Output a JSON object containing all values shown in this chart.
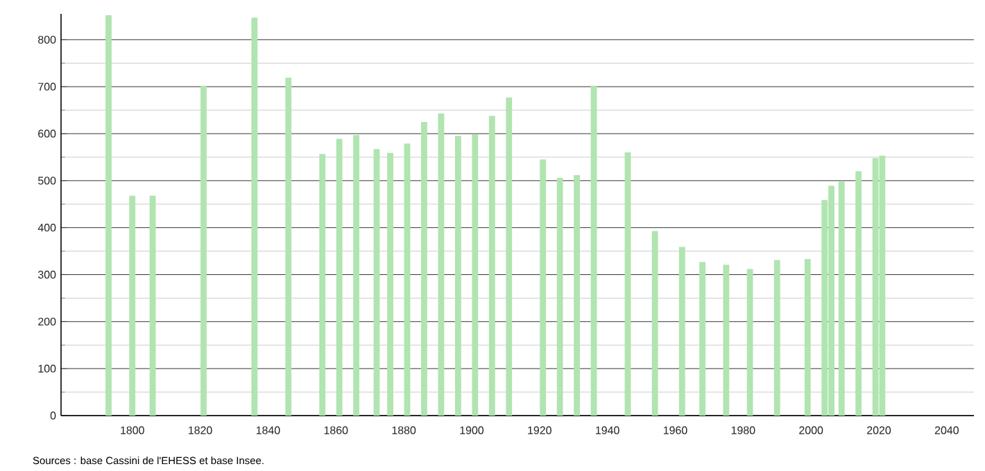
{
  "chart_data": {
    "type": "bar",
    "x": [
      1793,
      1800,
      1806,
      1821,
      1836,
      1846,
      1856,
      1861,
      1866,
      1872,
      1876,
      1881,
      1886,
      1891,
      1896,
      1901,
      1906,
      1911,
      1921,
      1926,
      1931,
      1936,
      1946,
      1954,
      1962,
      1968,
      1975,
      1982,
      1990,
      1999,
      2004,
      2006,
      2009,
      2014,
      2019,
      2021
    ],
    "values": [
      852,
      468,
      468,
      702,
      847,
      719,
      557,
      589,
      597,
      567,
      559,
      579,
      625,
      643,
      595,
      599,
      638,
      677,
      545,
      506,
      512,
      702,
      560,
      393,
      359,
      327,
      321,
      312,
      331,
      333,
      459,
      489,
      498,
      520,
      548,
      553
    ],
    "color": "#b0e4b0",
    "xlim": [
      1779,
      2048
    ],
    "ylim": [
      0,
      855
    ],
    "xticks": [
      1800,
      1820,
      1840,
      1860,
      1880,
      1900,
      1920,
      1940,
      1960,
      1980,
      2000,
      2020,
      2040
    ],
    "yticks": [
      0,
      100,
      200,
      300,
      400,
      500,
      600,
      700,
      800
    ],
    "grid": "y",
    "annotations": [
      "Sources : base Cassini de l'EHESS et base Insee."
    ]
  }
}
